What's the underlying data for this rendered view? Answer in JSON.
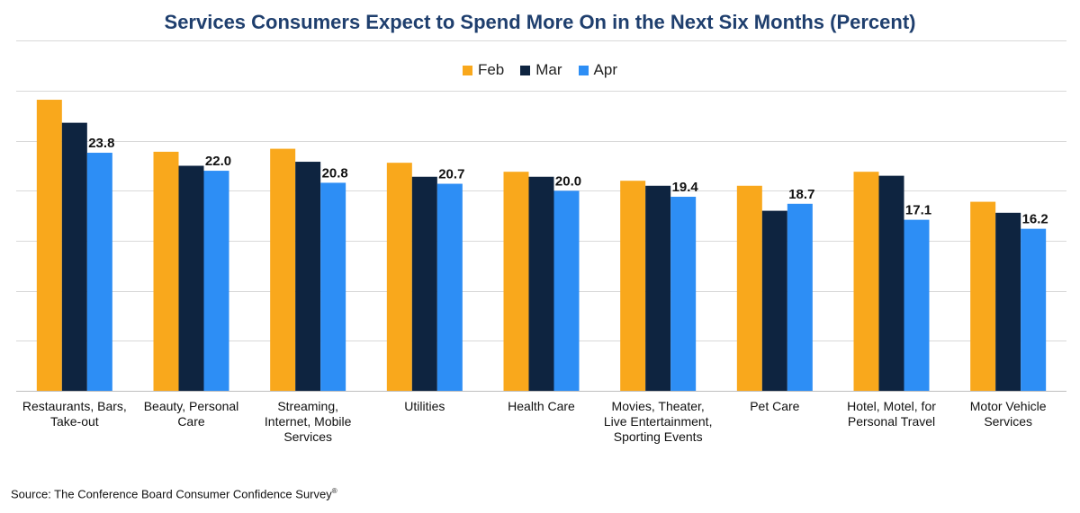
{
  "source": {
    "text": "Source: The Conference Board Consumer Confidence Survey",
    "mark": "®"
  },
  "chart_data": {
    "type": "bar",
    "title": "Services Consumers Expect to Spend More On in the Next Six Months (Percent)",
    "xlabel": "",
    "ylabel": "",
    "ylim": [
      0,
      30
    ],
    "grid": true,
    "legend_position": "top",
    "categories": [
      [
        "Restaurants, Bars,",
        "Take-out"
      ],
      [
        "Beauty, Personal",
        "Care"
      ],
      [
        "Streaming,",
        "Internet, Mobile",
        "Services"
      ],
      [
        "Utilities"
      ],
      [
        "Health Care"
      ],
      [
        "Movies, Theater,",
        "Live Entertainment,",
        "Sporting Events"
      ],
      [
        "Pet Care"
      ],
      [
        "Hotel, Motel, for",
        "Personal Travel"
      ],
      [
        "Motor Vehicle",
        "Services"
      ]
    ],
    "series": [
      {
        "name": "Feb",
        "color": "#f9a81c",
        "values": [
          29.1,
          23.9,
          24.2,
          22.8,
          21.9,
          21.0,
          20.5,
          21.9,
          18.9
        ]
      },
      {
        "name": "Mar",
        "color": "#0e2440",
        "values": [
          26.8,
          22.5,
          22.9,
          21.4,
          21.4,
          20.5,
          18.0,
          21.5,
          17.8
        ]
      },
      {
        "name": "Apr",
        "color": "#2d8ef5",
        "values": [
          23.8,
          22.0,
          20.8,
          20.7,
          20.0,
          19.4,
          18.7,
          17.1,
          16.2
        ]
      }
    ],
    "data_labels": {
      "series": "Apr",
      "values": [
        "23.8",
        "22.0",
        "20.8",
        "20.7",
        "20.0",
        "19.4",
        "18.7",
        "17.1",
        "16.2"
      ]
    }
  }
}
